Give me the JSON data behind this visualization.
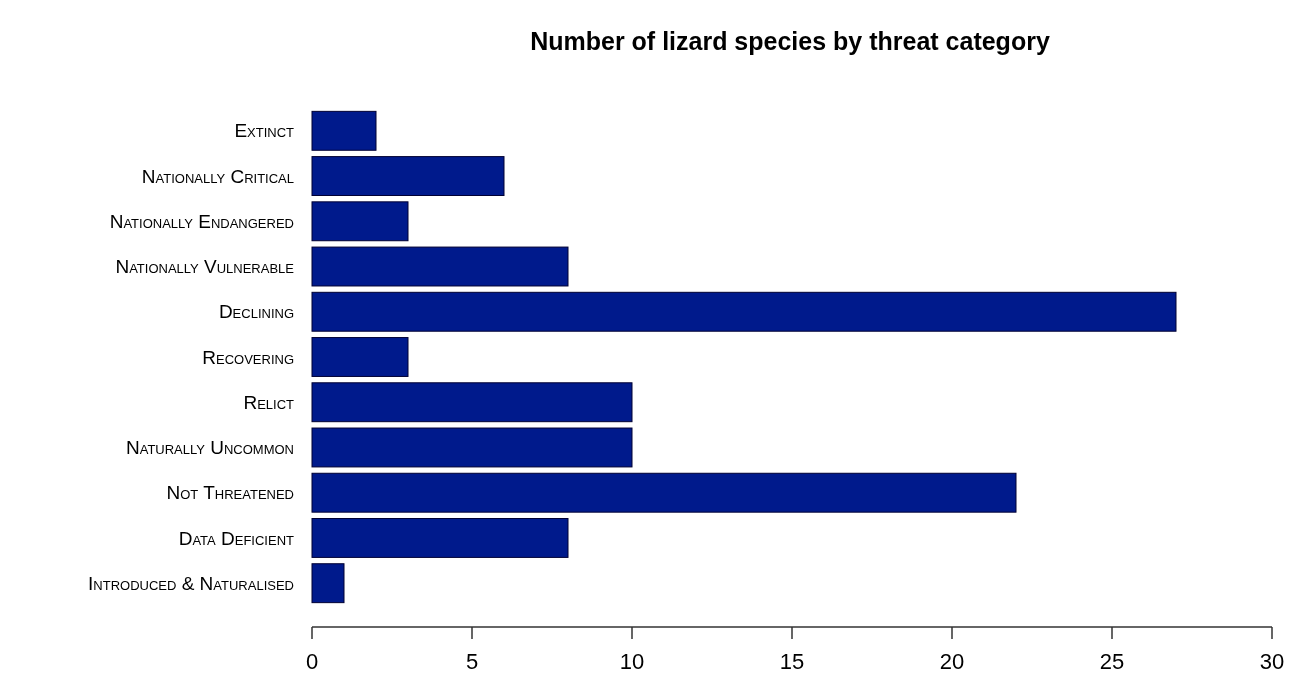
{
  "chart_data": {
    "type": "bar",
    "orientation": "horizontal",
    "title": "Number of lizard species by threat category",
    "categories": [
      "Extinct",
      "Nationally Critical",
      "Nationally Endangered",
      "Nationally Vulnerable",
      "Declining",
      "Recovering",
      "Relict",
      "Naturally Uncommon",
      "Not Threatened",
      "Data Deficient",
      "Introduced & Naturalised"
    ],
    "values": [
      2,
      6,
      3,
      8,
      27,
      3,
      10,
      10,
      22,
      8,
      1
    ],
    "color": "#001a8c",
    "xlim": [
      0,
      30
    ],
    "xticks": [
      0,
      5,
      10,
      15,
      20,
      25,
      30
    ],
    "grid": false
  }
}
